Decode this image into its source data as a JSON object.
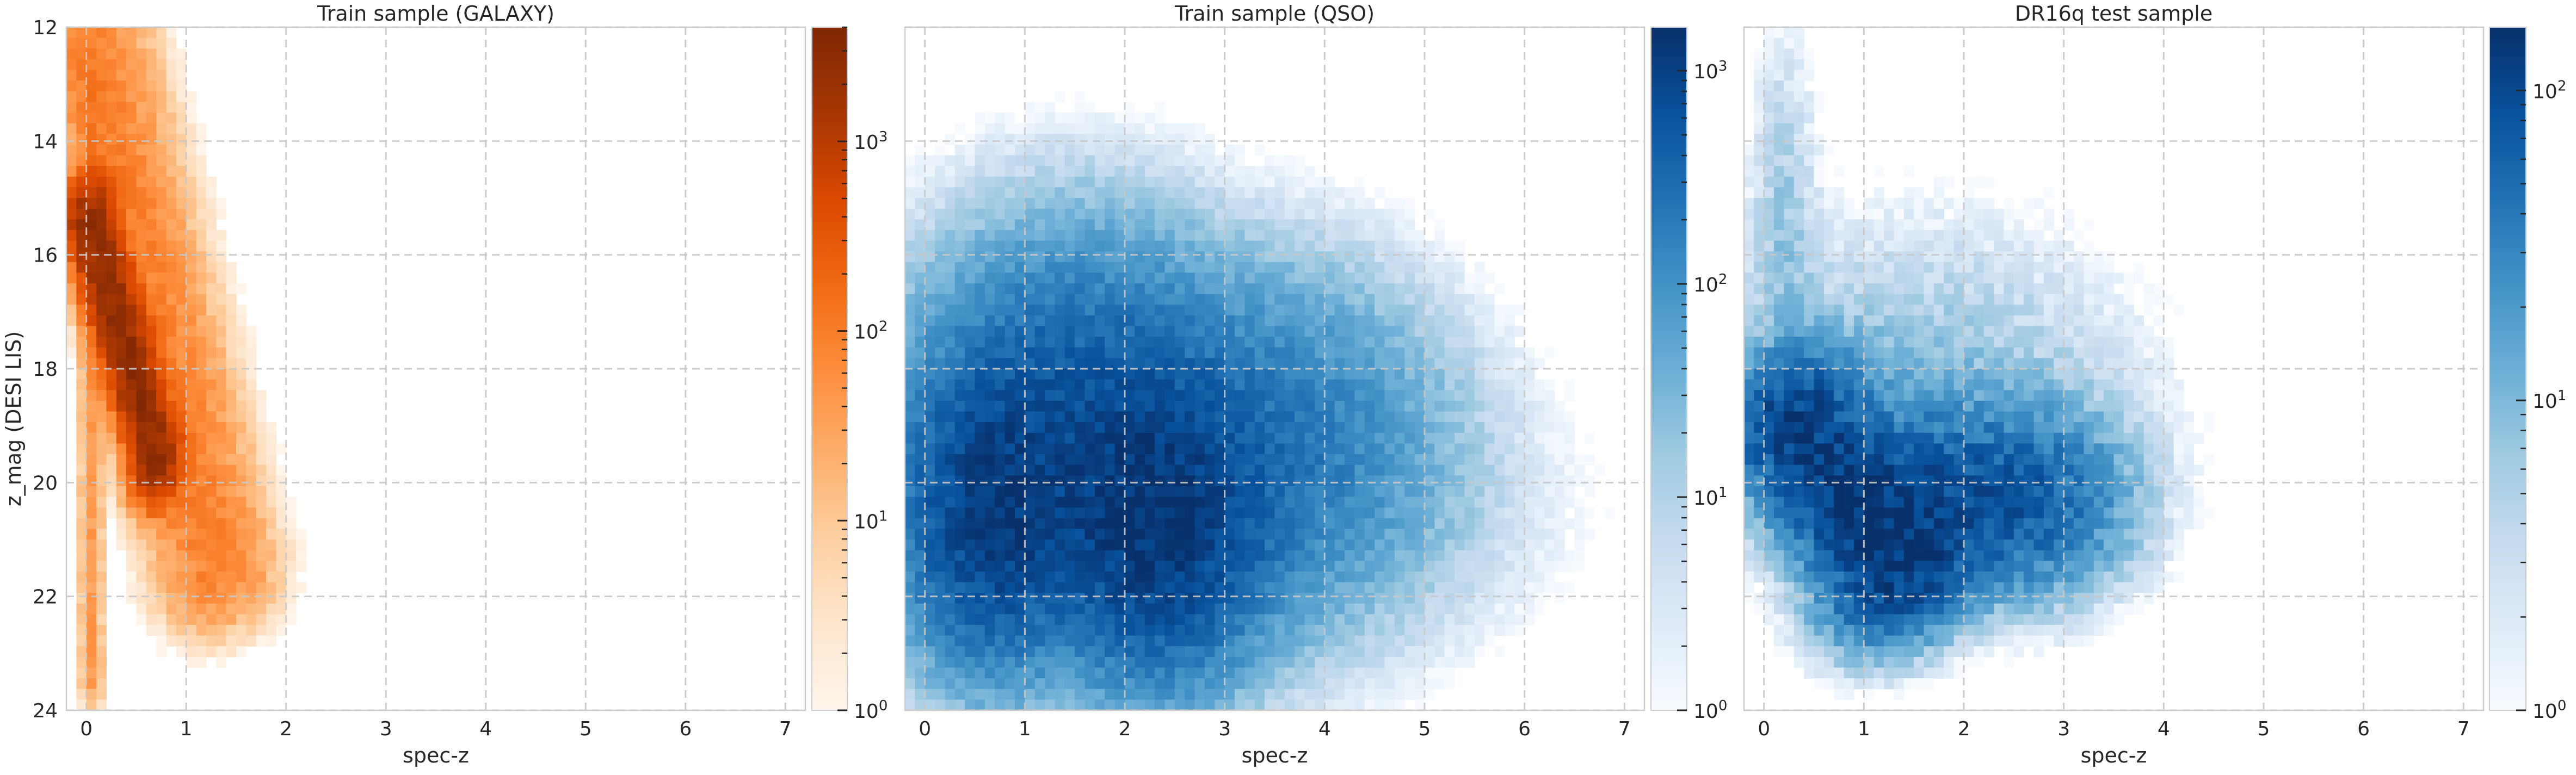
{
  "figure": {
    "ylabel": "z_mag (DESI LIS)"
  },
  "chart_data": [
    {
      "type": "heatmap",
      "title": "Train sample (GALAXY)",
      "xlabel": "spec-z",
      "ylabel": "z_mag (DESI LIS)",
      "xlim": [
        -0.2,
        7.2
      ],
      "ylim": [
        24,
        12
      ],
      "xticks": [
        "0",
        "1",
        "2",
        "3",
        "4",
        "5",
        "6",
        "7"
      ],
      "yticks": [
        "12",
        "14",
        "16",
        "18",
        "20",
        "22",
        "24"
      ],
      "grid": true,
      "colorscale": "Oranges",
      "color_low": "#fff5eb",
      "color_high": "#7f2704",
      "colorbar": {
        "scale": "log",
        "min": 1,
        "max": 4000,
        "labels": [
          {
            "base": "10",
            "exp": "0"
          },
          {
            "base": "10",
            "exp": "1"
          },
          {
            "base": "10",
            "exp": "2"
          },
          {
            "base": "10",
            "exp": "3"
          }
        ]
      },
      "density_components": [
        {
          "x": [
            0.05,
            0.7
          ],
          "y": [
            15.5,
            19.5
          ],
          "amp": 2600,
          "width": 0.13,
          "length": 0.55
        },
        {
          "x": [
            0.05,
            1.3
          ],
          "y": [
            12.5,
            21.5
          ],
          "amp": 90,
          "width": 0.3,
          "length": 0.6
        },
        {
          "x": [
            0.05,
            0.05
          ],
          "y": [
            12.2,
            23.5
          ],
          "amp": 40,
          "width": 0.06,
          "length": 0.5
        }
      ]
    },
    {
      "type": "heatmap",
      "title": "Train sample (QSO)",
      "xlabel": "spec-z",
      "ylabel": "",
      "xlim": [
        -0.2,
        7.2
      ],
      "ylim": [
        24,
        12
      ],
      "xticks": [
        "0",
        "1",
        "2",
        "3",
        "4",
        "5",
        "6",
        "7"
      ],
      "yticks": [
        "12",
        "14",
        "16",
        "18",
        "20",
        "22",
        "24"
      ],
      "grid": true,
      "colorscale": "Blues",
      "color_low": "#f7fbff",
      "color_high": "#08306b",
      "colorbar": {
        "scale": "log",
        "min": 1,
        "max": 1600,
        "labels": [
          {
            "base": "10",
            "exp": "0"
          },
          {
            "base": "10",
            "exp": "1"
          },
          {
            "base": "10",
            "exp": "2"
          },
          {
            "base": "10",
            "exp": "3"
          }
        ]
      },
      "density_components": [
        {
          "x": [
            0.7,
            0.7
          ],
          "y": [
            20.5,
            20.5
          ],
          "amp": 1100,
          "spread": [
            0.45,
            1.3
          ]
        },
        {
          "x": [
            2.3,
            2.3
          ],
          "y": [
            20.7,
            20.7
          ],
          "amp": 1300,
          "spread": [
            0.55,
            1.3
          ]
        },
        {
          "x": [
            1.5,
            1.5
          ],
          "y": [
            19.0,
            19.0
          ],
          "amp": 500,
          "spread": [
            0.8,
            1.6
          ]
        },
        {
          "x": [
            3.3,
            3.3
          ],
          "y": [
            19.5,
            19.5
          ],
          "amp": 250,
          "spread": [
            0.9,
            1.5
          ]
        },
        {
          "x": [
            5.0,
            5.0
          ],
          "y": [
            20.5,
            20.5
          ],
          "amp": 3,
          "spread": [
            1.0,
            1.3
          ]
        }
      ]
    },
    {
      "type": "heatmap",
      "title": "DR16q test sample",
      "xlabel": "spec-z",
      "ylabel": "",
      "xlim": [
        -0.2,
        7.2
      ],
      "ylim": [
        24,
        12
      ],
      "xticks": [
        "0",
        "1",
        "2",
        "3",
        "4",
        "5",
        "6",
        "7"
      ],
      "yticks": [
        "12",
        "14",
        "16",
        "18",
        "20",
        "22",
        "24"
      ],
      "grid": true,
      "colorscale": "Blues",
      "color_low": "#f7fbff",
      "color_high": "#08306b",
      "colorbar": {
        "scale": "log",
        "min": 1,
        "max": 160,
        "labels": [
          {
            "base": "10",
            "exp": "0"
          },
          {
            "base": "10",
            "exp": "1"
          },
          {
            "base": "10",
            "exp": "2"
          }
        ]
      },
      "density_components": [
        {
          "x": [
            0.3,
            1.3
          ],
          "y": [
            19.0,
            21.5
          ],
          "amp": 120,
          "width": 0.4,
          "length": 0.7
        },
        {
          "x": [
            1.5,
            1.5
          ],
          "y": [
            20.3,
            20.3
          ],
          "amp": 60,
          "spread": [
            0.5,
            0.9
          ]
        },
        {
          "x": [
            2.5,
            2.5
          ],
          "y": [
            20.3,
            20.3
          ],
          "amp": 70,
          "spread": [
            0.6,
            0.9
          ]
        },
        {
          "x": [
            1.5,
            1.5
          ],
          "y": [
            18.5,
            18.5
          ],
          "amp": 8,
          "spread": [
            1.3,
            1.8
          ]
        },
        {
          "x": [
            0.2,
            0.2
          ],
          "y": [
            15.5,
            15.5
          ],
          "amp": 6,
          "spread": [
            0.2,
            2.0
          ]
        }
      ]
    }
  ]
}
